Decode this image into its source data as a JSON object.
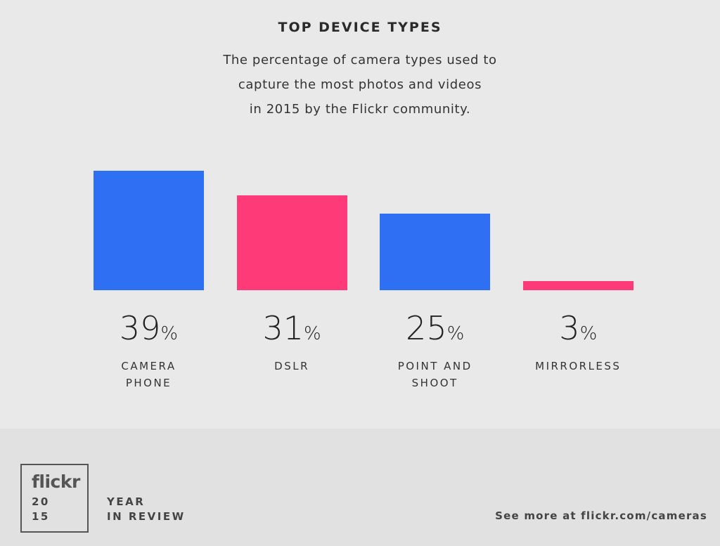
{
  "chart_data": {
    "type": "bar",
    "title": "TOP DEVICE TYPES",
    "subtitle": [
      "The percentage of camera types used to",
      "capture the most photos and videos",
      "in 2015 by the Flickr community."
    ],
    "categories": [
      "CAMERA PHONE",
      "DSLR",
      "POINT AND SHOOT",
      "MIRRORLESS"
    ],
    "values": [
      39,
      31,
      25,
      3
    ],
    "value_labels": [
      "39%",
      "31%",
      "25%",
      "3%"
    ],
    "colors": [
      "#2f6ff3",
      "#fe3a79",
      "#2f6ff3",
      "#fe3a79"
    ]
  },
  "footer": {
    "logo": "flickr",
    "year_top": "20",
    "year_bottom": "15",
    "tag_line_1": "YEAR",
    "tag_line_2": "IN REVIEW",
    "link": "See more at flickr.com/cameras"
  }
}
